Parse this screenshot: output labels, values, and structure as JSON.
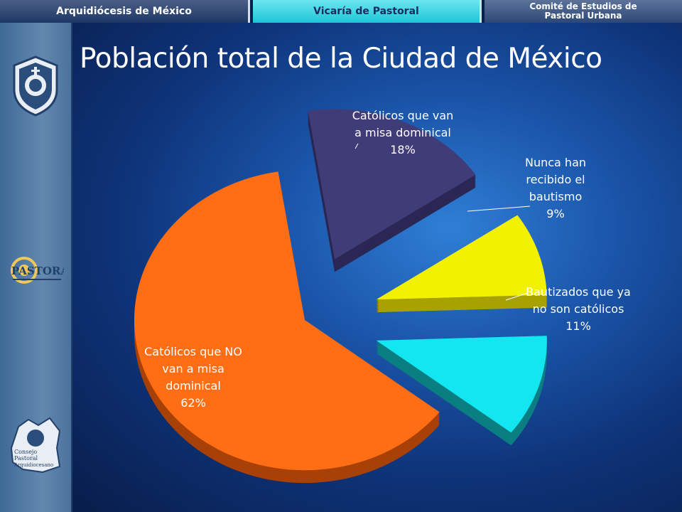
{
  "header": {
    "tabs": [
      {
        "label": "Arquidiócesis de México"
      },
      {
        "label": "Vicaría de Pastoral"
      },
      {
        "label_line1": "Comité de Estudios de",
        "label_line2": "Pastoral Urbana"
      }
    ]
  },
  "sidebar": {
    "logos": [
      {
        "name": "archdiocese-seal"
      },
      {
        "name": "pastoral-logo",
        "text": "PASTORAL"
      },
      {
        "name": "consejo-pastoral-logo",
        "text_lines": [
          "Consejo",
          "Pastoral",
          "Arquidiocesano"
        ]
      }
    ]
  },
  "slide": {
    "title": "Población total de la Ciudad de México"
  },
  "chart_data": {
    "type": "pie",
    "style": "3d-exploded",
    "title": "Población total de la Ciudad de México",
    "slices": [
      {
        "label": "Católicos que van a misa dominical",
        "value": 18,
        "label_lines": [
          "Católicos que van",
          "a misa dominical",
          "18%"
        ],
        "color": "#403c78",
        "side_color": "#2a2755"
      },
      {
        "label": "Nunca han recibido el bautismo",
        "value": 9,
        "label_lines": [
          "Nunca han",
          "recibido el",
          "bautismo",
          "9%"
        ],
        "color": "#f2f100",
        "side_color": "#a8a200"
      },
      {
        "label": "Bautizados que ya no son católicos",
        "value": 11,
        "label_lines": [
          "Bautizados que ya",
          "no son católicos",
          "11%"
        ],
        "color": "#12e6f0",
        "side_color": "#0a7f82"
      },
      {
        "label": "Católicos que NO van a misa dominical",
        "value": 62,
        "label_lines": [
          "Católicos que NO",
          "van a misa",
          "dominical",
          "62%"
        ],
        "color": "#ff6e14",
        "side_color": "#a84107"
      }
    ],
    "legend": "none"
  }
}
